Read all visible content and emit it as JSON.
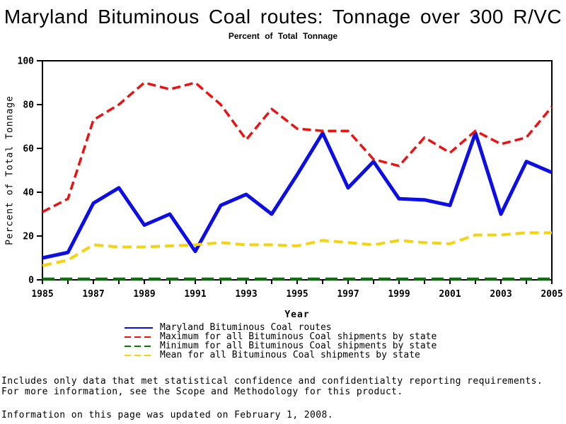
{
  "page": {
    "title": "Maryland Bituminous Coal routes: Tonnage over 300 R/VC",
    "subtitle": "Percent of Total Tonnage",
    "footer_lines": [
      "Includes only data that met statistical confidence and confidentialty reporting requirements.",
      "For more information, see the Scope and Methodology for this product.",
      "Information on this page was updated on February 1, 2008."
    ]
  },
  "chart_data": {
    "type": "line",
    "title": "Maryland Bituminous Coal routes: Tonnage over 300 R/VC",
    "subtitle": "Percent of Total Tonnage",
    "xlabel": "Year",
    "ylabel": "Percent of Total Tonnage",
    "x": [
      1985,
      1986,
      1987,
      1988,
      1989,
      1990,
      1991,
      1992,
      1993,
      1994,
      1995,
      1996,
      1997,
      1998,
      1999,
      2000,
      2001,
      2002,
      2003,
      2004,
      2005
    ],
    "x_tick_labels": [
      1985,
      1987,
      1989,
      1991,
      1993,
      1995,
      1997,
      1999,
      2001,
      2003,
      2005
    ],
    "xlim": [
      1985,
      2005
    ],
    "ylim": [
      0,
      100
    ],
    "yticks": [
      0,
      20,
      40,
      60,
      80,
      100
    ],
    "grid": false,
    "legend_position": "bottom",
    "frame_color": "#000000",
    "series": [
      {
        "name": "Maryland Bituminous Coal routes",
        "color": "#0d0de6",
        "style": "solid",
        "width": 5,
        "dash": "",
        "values": [
          10,
          12.5,
          35,
          42,
          25,
          30,
          13,
          34,
          39,
          30,
          48,
          67,
          42,
          54,
          37,
          36.5,
          34,
          67,
          30,
          54,
          49
        ]
      },
      {
        "name": "Maximum for all Bituminous Coal shipments by state",
        "color": "#ee1111",
        "style": "dashed",
        "width": 3.5,
        "dash": "12 6",
        "values": [
          31,
          37,
          73,
          80,
          90,
          87,
          90,
          80,
          64,
          78,
          69,
          68,
          68,
          55,
          52,
          65,
          58,
          68,
          62,
          65,
          79
        ]
      },
      {
        "name": "Minimum for all Bituminous Coal shipments by state",
        "color": "#0a770a",
        "style": "dashed",
        "width": 4,
        "dash": "17 8",
        "values": [
          0.4,
          0.4,
          0.4,
          0.4,
          0.4,
          0.4,
          0.4,
          0.4,
          0.4,
          0.4,
          0.4,
          0.4,
          0.4,
          0.4,
          0.4,
          0.4,
          0.4,
          0.4,
          0.4,
          0.4,
          0.4
        ]
      },
      {
        "name": "Mean for all Bituminous Coal shipments by state",
        "color": "#f5d40e",
        "style": "dashed",
        "width": 4,
        "dash": "13 7",
        "values": [
          6.5,
          9,
          16,
          15,
          15,
          15.5,
          16,
          17,
          16,
          16,
          15.5,
          18,
          17,
          16,
          18,
          17,
          16.5,
          20.5,
          20.5,
          21.5,
          21.5
        ]
      }
    ]
  }
}
